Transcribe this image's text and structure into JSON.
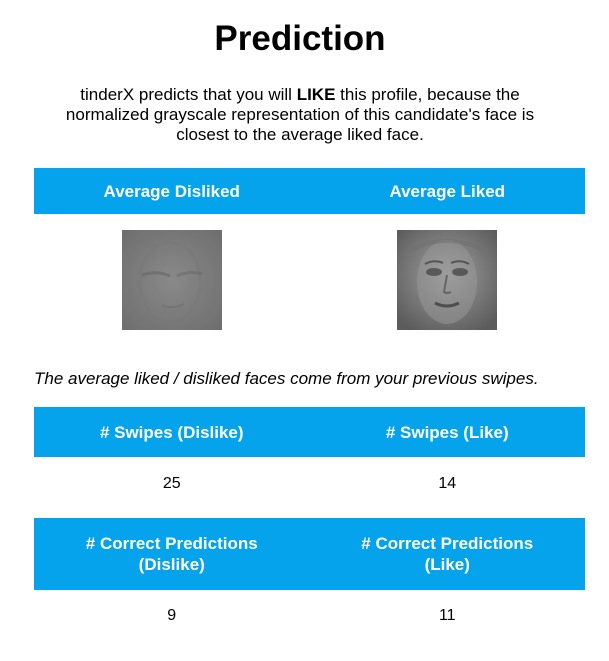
{
  "title": "Prediction",
  "description": {
    "before": "tinderX predicts that you will ",
    "verdict": "LIKE",
    "after": " this profile, because the normalized grayscale representation of this candidate's face is closest to the average liked face."
  },
  "faces_table": {
    "headers": [
      "Average Disliked",
      "Average Liked"
    ],
    "images": [
      "average-disliked-face",
      "average-liked-face"
    ]
  },
  "note": "The average liked / disliked faces come from your previous swipes.",
  "swipes_table": {
    "headers": [
      "# Swipes (Dislike)",
      "# Swipes (Like)"
    ],
    "values": [
      "25",
      "14"
    ]
  },
  "predictions_table": {
    "headers": [
      "# Correct Predictions (Dislike)",
      "# Correct Predictions (Like)"
    ],
    "values": [
      "9",
      "11"
    ]
  },
  "colors": {
    "header_bg": "#04a3eb",
    "header_text": "#ffffff"
  }
}
